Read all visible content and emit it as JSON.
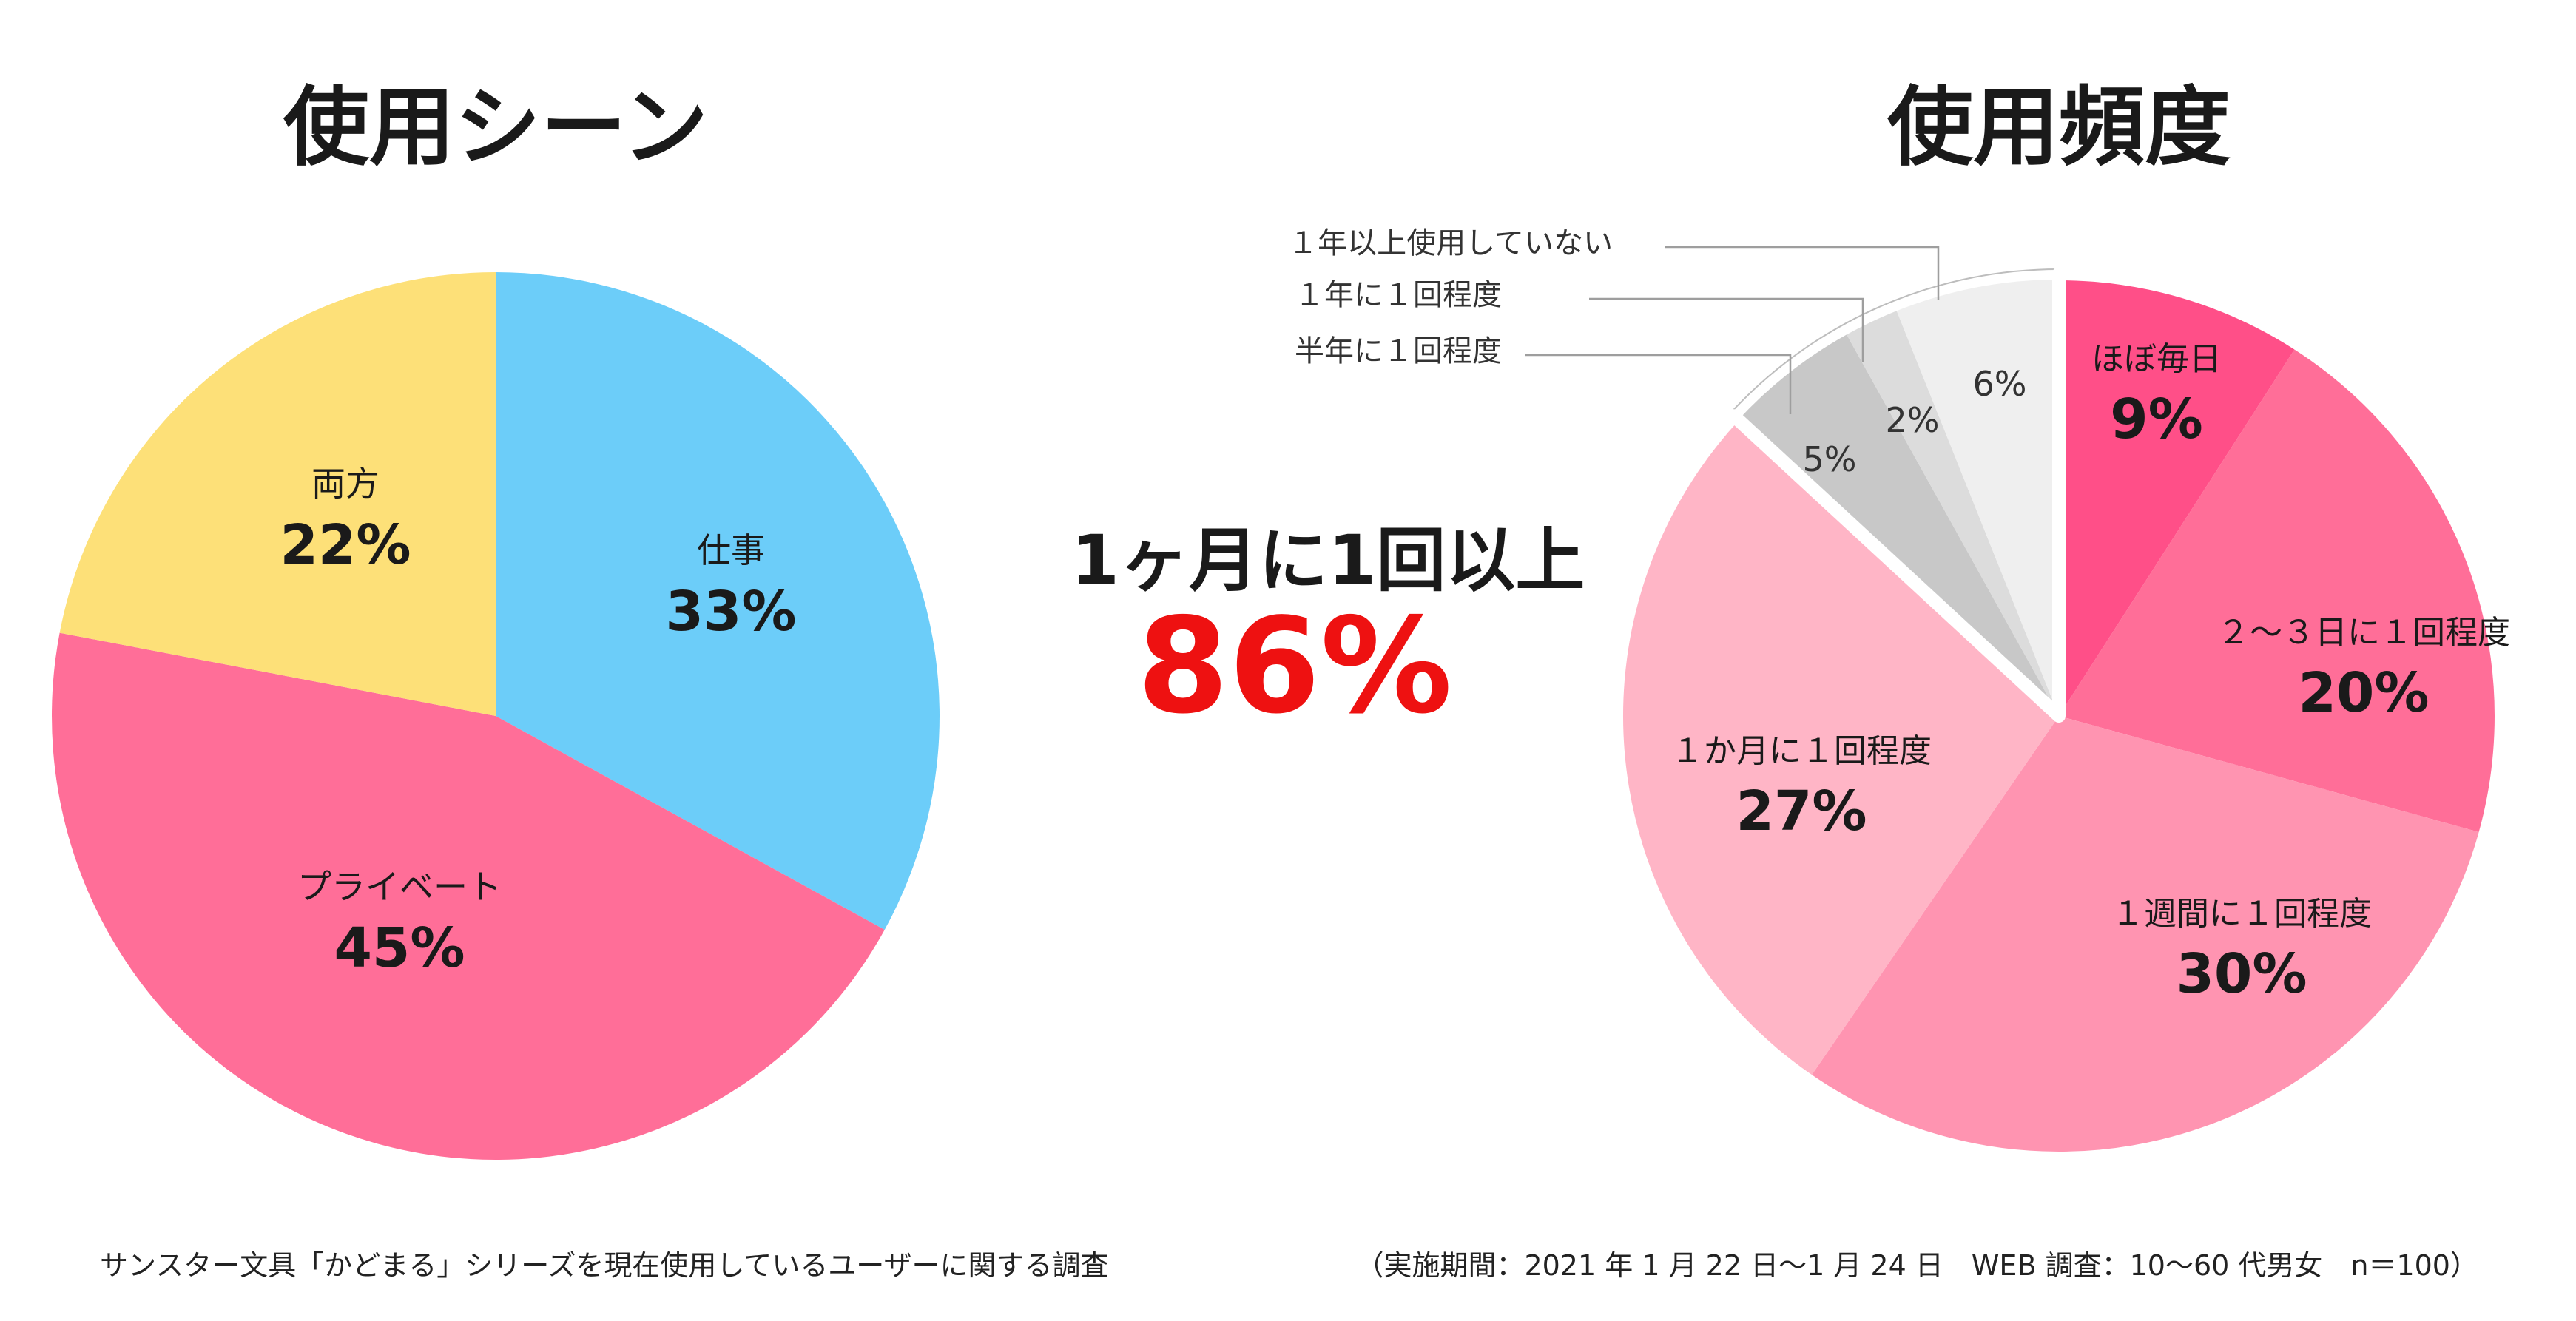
{
  "chart_data": [
    {
      "type": "pie",
      "title": "使用シーン",
      "slices": [
        {
          "label": "仕事",
          "value": 33,
          "value_label": "33%",
          "color": "#6ccdf9"
        },
        {
          "label": "プライベート",
          "value": 45,
          "value_label": "45%",
          "color": "#ff6e98"
        },
        {
          "label": "両方",
          "value": 22,
          "value_label": "22%",
          "color": "#fde078"
        }
      ]
    },
    {
      "type": "pie",
      "title": "使用頻度",
      "slices": [
        {
          "label": "ほぼ毎日",
          "value": 9,
          "value_label": "9%",
          "color": "#ff4f88"
        },
        {
          "label": "２～３日に１回程度",
          "value": 20,
          "value_label": "20%",
          "color": "#ff6e98"
        },
        {
          "label": "１週間に１回程度",
          "value": 30,
          "value_label": "30%",
          "color": "#ff94b1"
        },
        {
          "label": "１か月に１回程度",
          "value": 27,
          "value_label": "27%",
          "color": "#ffb5c6"
        },
        {
          "label": "半年に１回程度",
          "value": 5,
          "value_label": "5%",
          "color": "#c8c8c8"
        },
        {
          "label": "１年に１回程度",
          "value": 2,
          "value_label": "2%",
          "color": "#dcdcdc"
        },
        {
          "label": "１年以上使用していない",
          "value": 6,
          "value_label": "6%",
          "color": "#efefef"
        }
      ],
      "annotation": {
        "label": "1ヶ月に1回以上",
        "value": "86%",
        "color": "#ee1111"
      }
    }
  ],
  "footer": {
    "source": "サンスター文具「かどまる」シリーズを現在使用しているユーザーに関する調査",
    "period": "（実施期間：2021 年 1 月 22 日～1 月 24 日　WEB 調査：10～60 代男女　n＝100）"
  }
}
